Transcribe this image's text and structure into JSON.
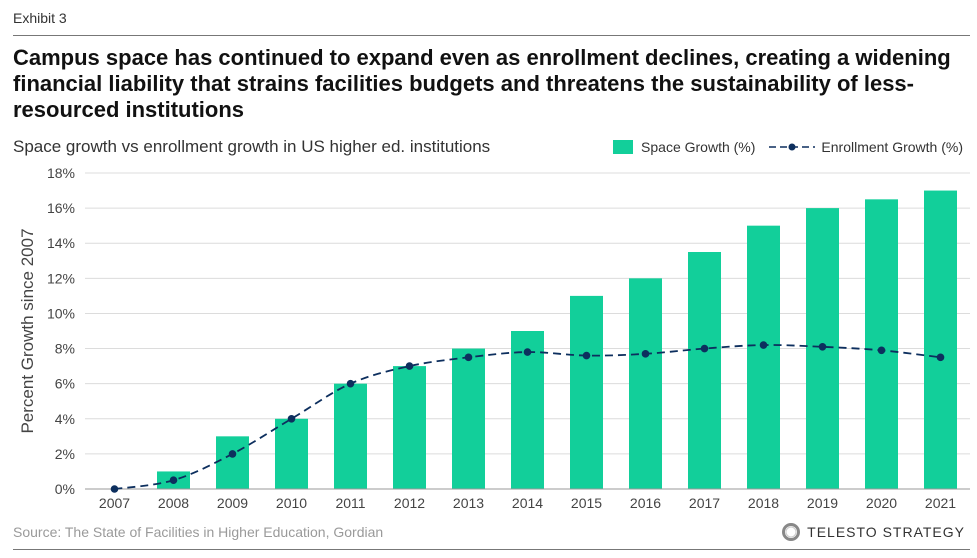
{
  "exhibit": "Exhibit 3",
  "title": "Campus space has continued to expand even as enrollment declines, creating a widening financial liability that strains facilities budgets and threatens the sustainability of less-resourced institutions",
  "source": "Source: The State of Facilities in Higher Education, Gordian",
  "logo": "TELESTO STRATEGY",
  "colors": {
    "bar": "#12CF9A",
    "line": "#0D2F5E"
  },
  "chart_data": {
    "type": "bar",
    "title": "Space growth vs enrollment growth in US higher ed. institutions",
    "xlabel": "",
    "ylabel": "Percent Growth since 2007",
    "ylim": [
      0,
      18
    ],
    "yticks": [
      "0%",
      "2%",
      "4%",
      "6%",
      "8%",
      "10%",
      "12%",
      "14%",
      "16%",
      "18%"
    ],
    "grid": true,
    "legend_position": "top-right",
    "categories": [
      "2007",
      "2008",
      "2009",
      "2010",
      "2011",
      "2012",
      "2013",
      "2014",
      "2015",
      "2016",
      "2017",
      "2018",
      "2019",
      "2020",
      "2021"
    ],
    "series": [
      {
        "name": "Space Growth (%)",
        "type": "bar",
        "values": [
          0,
          1,
          3,
          4,
          6,
          7,
          8,
          9,
          11,
          12,
          13.5,
          15,
          16,
          16.5,
          17
        ]
      },
      {
        "name": "Enrollment Growth (%)",
        "type": "line",
        "values": [
          0,
          0.5,
          2,
          4,
          6,
          7,
          7.5,
          7.8,
          7.6,
          7.7,
          8.0,
          8.2,
          8.1,
          7.9,
          7.5
        ]
      }
    ]
  }
}
